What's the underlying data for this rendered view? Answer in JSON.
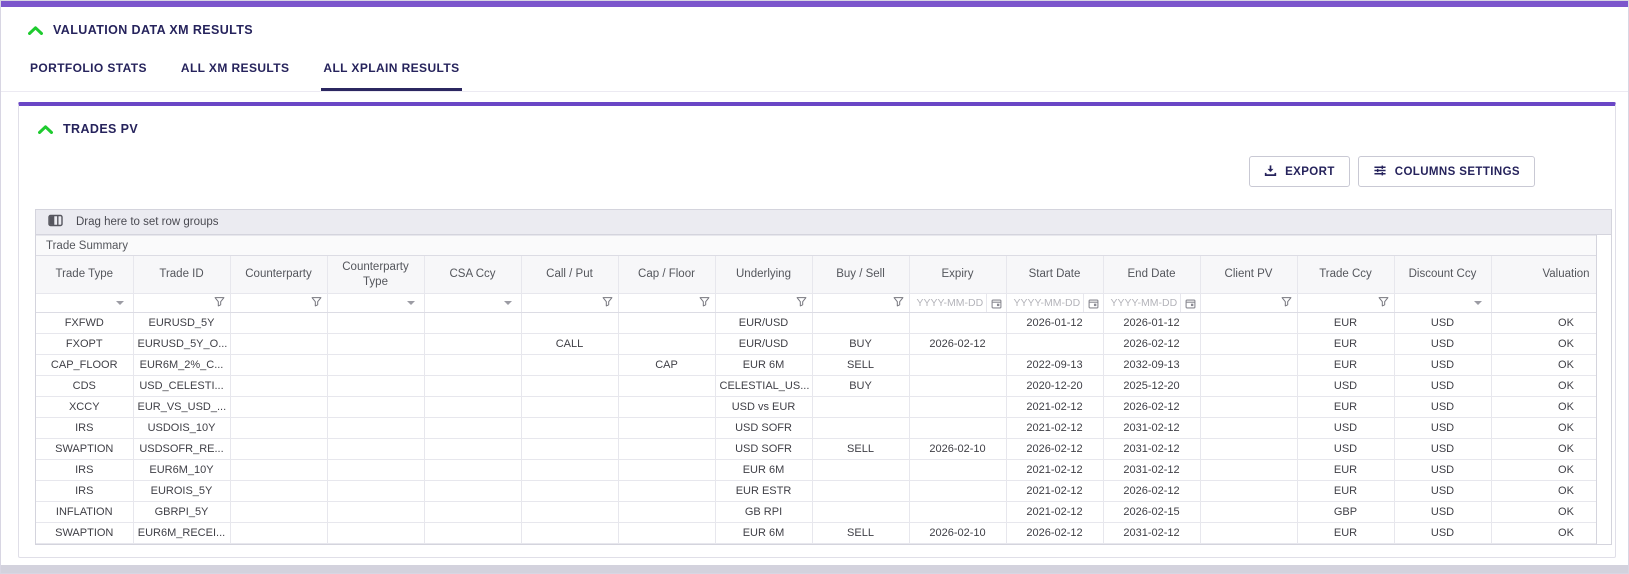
{
  "header": {
    "title": "VALUATION DATA XM RESULTS",
    "tabs": [
      {
        "label": "PORTFOLIO STATS",
        "active": false
      },
      {
        "label": "ALL XM RESULTS",
        "active": false
      },
      {
        "label": "ALL XPLAIN RESULTS",
        "active": true
      }
    ]
  },
  "card": {
    "title": "TRADES PV",
    "buttons": [
      {
        "label": "EXPORT",
        "icon": "download-icon"
      },
      {
        "label": "COLUMNS SETTINGS",
        "icon": "sliders-icon"
      }
    ]
  },
  "table": {
    "drag_hint": "Drag here to set row groups",
    "group_header": "Trade Summary",
    "columns": [
      {
        "label": "Trade Type",
        "filter": "select"
      },
      {
        "label": "Trade ID",
        "filter": "funnel"
      },
      {
        "label": "Counterparty",
        "filter": "funnel"
      },
      {
        "label": "Counterparty Type",
        "filter": "select"
      },
      {
        "label": "CSA Ccy",
        "filter": "select"
      },
      {
        "label": "Call / Put",
        "filter": "funnel"
      },
      {
        "label": "Cap / Floor",
        "filter": "funnel"
      },
      {
        "label": "Underlying",
        "filter": "funnel"
      },
      {
        "label": "Buy / Sell",
        "filter": "funnel"
      },
      {
        "label": "Expiry",
        "filter": "date",
        "placeholder": "YYYY-MM-DD"
      },
      {
        "label": "Start Date",
        "filter": "date",
        "placeholder": "YYYY-MM-DD"
      },
      {
        "label": "End Date",
        "filter": "date",
        "placeholder": "YYYY-MM-DD"
      },
      {
        "label": "Client PV",
        "filter": "funnel"
      },
      {
        "label": "Trade Ccy",
        "filter": "funnel"
      },
      {
        "label": "Discount Ccy",
        "filter": "select"
      },
      {
        "label": "Valuation",
        "filter": "none"
      }
    ],
    "rows": [
      [
        "FXFWD",
        "EURUSD_5Y",
        "",
        "",
        "",
        "",
        "",
        "EUR/USD",
        "",
        "",
        "2026-01-12",
        "2026-01-12",
        "",
        "EUR",
        "USD",
        "OK"
      ],
      [
        "FXOPT",
        "EURUSD_5Y_O...",
        "",
        "",
        "",
        "CALL",
        "",
        "EUR/USD",
        "BUY",
        "2026-02-12",
        "",
        "2026-02-12",
        "",
        "EUR",
        "USD",
        "OK"
      ],
      [
        "CAP_FLOOR",
        "EUR6M_2%_C...",
        "",
        "",
        "",
        "",
        "CAP",
        "EUR 6M",
        "SELL",
        "",
        "2022-09-13",
        "2032-09-13",
        "",
        "EUR",
        "USD",
        "OK"
      ],
      [
        "CDS",
        "USD_CELESTI...",
        "",
        "",
        "",
        "",
        "",
        "CELESTIAL_US...",
        "BUY",
        "",
        "2020-12-20",
        "2025-12-20",
        "",
        "USD",
        "USD",
        "OK"
      ],
      [
        "XCCY",
        "EUR_VS_USD_...",
        "",
        "",
        "",
        "",
        "",
        "USD vs EUR",
        "",
        "",
        "2021-02-12",
        "2026-02-12",
        "",
        "EUR",
        "USD",
        "OK"
      ],
      [
        "IRS",
        "USDOIS_10Y",
        "",
        "",
        "",
        "",
        "",
        "USD SOFR",
        "",
        "",
        "2021-02-12",
        "2031-02-12",
        "",
        "USD",
        "USD",
        "OK"
      ],
      [
        "SWAPTION",
        "USDSOFR_RE...",
        "",
        "",
        "",
        "",
        "",
        "USD SOFR",
        "SELL",
        "2026-02-10",
        "2026-02-12",
        "2031-02-12",
        "",
        "USD",
        "USD",
        "OK"
      ],
      [
        "IRS",
        "EUR6M_10Y",
        "",
        "",
        "",
        "",
        "",
        "EUR 6M",
        "",
        "",
        "2021-02-12",
        "2031-02-12",
        "",
        "EUR",
        "USD",
        "OK"
      ],
      [
        "IRS",
        "EUROIS_5Y",
        "",
        "",
        "",
        "",
        "",
        "EUR ESTR",
        "",
        "",
        "2021-02-12",
        "2026-02-12",
        "",
        "EUR",
        "USD",
        "OK"
      ],
      [
        "INFLATION",
        "GBRPI_5Y",
        "",
        "",
        "",
        "",
        "",
        "GB RPI",
        "",
        "",
        "2021-02-12",
        "2026-02-15",
        "",
        "GBP",
        "USD",
        "OK"
      ],
      [
        "SWAPTION",
        "EUR6M_RECEI...",
        "",
        "",
        "",
        "",
        "",
        "EUR 6M",
        "SELL",
        "2026-02-10",
        "2026-02-12",
        "2031-02-12",
        "",
        "EUR",
        "USD",
        "OK"
      ]
    ]
  },
  "colors": {
    "accent": "#7c56cc",
    "card-accent": "#6a46c6",
    "collapse-green": "#1ecb2f",
    "navy": "#26235c"
  }
}
